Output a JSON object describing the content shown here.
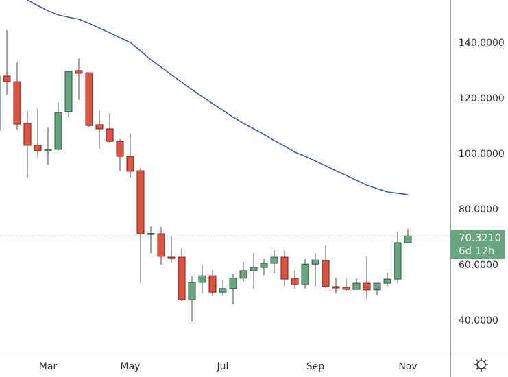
{
  "chart_data": {
    "type": "candlestick",
    "title": "",
    "xlabel": "",
    "ylabel": "",
    "ylim": [
      33,
      156
    ],
    "y_ticks": [
      "140.0000",
      "120.0000",
      "100.0000",
      "80.0000",
      "60.0000",
      "40.0000"
    ],
    "y_tick_values": [
      140,
      120,
      100,
      80,
      60,
      40
    ],
    "x_ticks": [
      {
        "label": "Mar",
        "index": 5
      },
      {
        "label": "May",
        "index": 13
      },
      {
        "label": "Jul",
        "index": 22
      },
      {
        "label": "Sep",
        "index": 31
      },
      {
        "label": "Nov",
        "index": 40
      }
    ],
    "candle_format": [
      "open",
      "high",
      "low",
      "close"
    ],
    "candles": [
      [
        108.4,
        129.0,
        107.0,
        127.9
      ],
      [
        127.9,
        144.4,
        121.2,
        125.9
      ],
      [
        125.9,
        132.8,
        108.6,
        110.6
      ],
      [
        110.9,
        115.3,
        91.4,
        103.0
      ],
      [
        103.0,
        116.3,
        98.8,
        101.0
      ],
      [
        101.0,
        109.4,
        96.0,
        101.5
      ],
      [
        101.5,
        118.5,
        101.0,
        114.8
      ],
      [
        115.1,
        129.9,
        113.1,
        129.6
      ],
      [
        129.9,
        134.3,
        119.3,
        128.9
      ],
      [
        129.1,
        129.1,
        109.6,
        110.1
      ],
      [
        110.4,
        115.3,
        101.7,
        108.9
      ],
      [
        108.9,
        114.6,
        103.7,
        104.4
      ],
      [
        104.4,
        105.2,
        93.8,
        99.0
      ],
      [
        99.0,
        107.2,
        91.4,
        93.6
      ],
      [
        93.8,
        94.8,
        53.3,
        71.1
      ],
      [
        71.1,
        73.8,
        64.2,
        71.2
      ],
      [
        71.1,
        73.6,
        60.0,
        63.0
      ],
      [
        62.7,
        70.1,
        60.7,
        62.2
      ],
      [
        62.7,
        65.9,
        46.9,
        47.4
      ],
      [
        47.4,
        55.8,
        39.5,
        53.6
      ],
      [
        53.6,
        60.0,
        49.6,
        56.0
      ],
      [
        56.0,
        58.0,
        48.6,
        50.1
      ],
      [
        50.1,
        54.6,
        48.6,
        51.4
      ],
      [
        51.4,
        56.5,
        45.7,
        55.1
      ],
      [
        55.1,
        61.0,
        53.8,
        57.8
      ],
      [
        57.8,
        64.2,
        51.4,
        59.0
      ],
      [
        59.0,
        62.0,
        56.3,
        60.5
      ],
      [
        60.5,
        65.2,
        56.8,
        62.7
      ],
      [
        62.7,
        65.2,
        52.1,
        54.8
      ],
      [
        55.1,
        57.8,
        51.4,
        52.8
      ],
      [
        52.8,
        62.0,
        51.4,
        60.2
      ],
      [
        60.2,
        64.2,
        52.3,
        61.7
      ],
      [
        61.5,
        66.9,
        51.6,
        52.1
      ],
      [
        52.1,
        55.3,
        49.6,
        51.6
      ],
      [
        51.9,
        55.1,
        50.4,
        51.1
      ],
      [
        51.1,
        55.1,
        51.4,
        53.3
      ],
      [
        53.3,
        63.0,
        47.7,
        50.9
      ],
      [
        50.9,
        53.3,
        48.9,
        53.3
      ],
      [
        53.3,
        57.0,
        52.3,
        54.8
      ],
      [
        54.8,
        71.9,
        53.3,
        67.9
      ],
      [
        67.9,
        72.8,
        67.9,
        70.3
      ]
    ],
    "moving_average": {
      "start_index": 3,
      "values": [
        155.3,
        153.3,
        151.4,
        149.9,
        149.1,
        148.4,
        146.9,
        145.2,
        143.5,
        141.7,
        140.0,
        137.0,
        133.8,
        131.1,
        128.4,
        125.7,
        123.0,
        120.5,
        118.0,
        115.6,
        113.1,
        110.9,
        108.9,
        106.9,
        104.7,
        102.7,
        100.5,
        99.0,
        97.3,
        95.6,
        93.8,
        92.1,
        90.4,
        88.6,
        87.4,
        86.2,
        85.7,
        85.2
      ],
      "color": "#3f5aa0"
    },
    "last_price": 70.321,
    "colors": {
      "up": "#6aa582",
      "up_border": "#2b5a3c",
      "down": "#dc5442",
      "down_border": "#7a1d14",
      "wick": "#777777"
    }
  },
  "price_tag": {
    "price": "70.3210",
    "countdown": "6d 12h"
  },
  "settings_icon": "gear-icon"
}
